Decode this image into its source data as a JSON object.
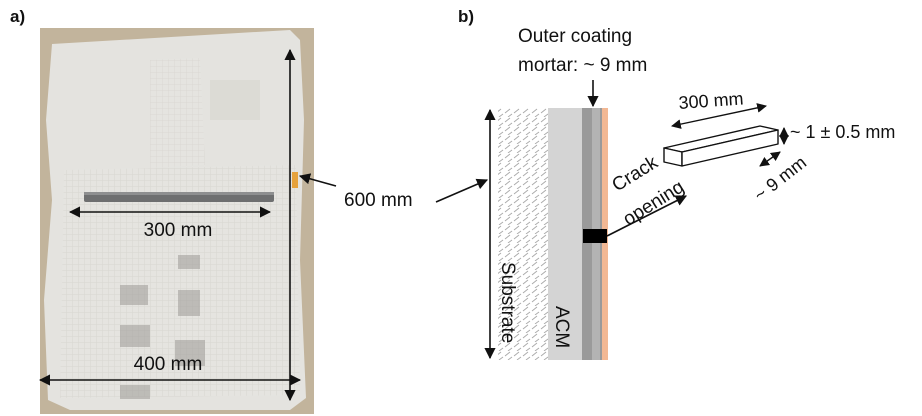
{
  "panels": {
    "a": {
      "label": "a)",
      "dim_crack_length": "300 mm",
      "dim_height": "600 mm",
      "dim_width": "400 mm"
    },
    "b": {
      "label": "b)",
      "outer_coating_line1": "Outer coating",
      "outer_coating_line2": "mortar: ~ 9 mm",
      "substrate": "Substrate",
      "acm": "ACM",
      "crack_line1": "Crack",
      "crack_line2": "opening",
      "specimen_length": "300 mm",
      "specimen_opening": "~ 1 ± 0.5 mm",
      "specimen_depth": "~ 9 mm"
    }
  },
  "colors": {
    "specimen_bg": "#c2b49c",
    "mortar": "#e4e3df",
    "crack_bar": "#6e6f70",
    "substrate_hatch": "#a9a9a9",
    "acm": "#d4d4d4",
    "outer_coating": "#9a9a9a",
    "finish_layer": "#f2b894",
    "crack_mark": "#000000",
    "arrow": "#111111",
    "orange_marker": "#e6a23c"
  }
}
